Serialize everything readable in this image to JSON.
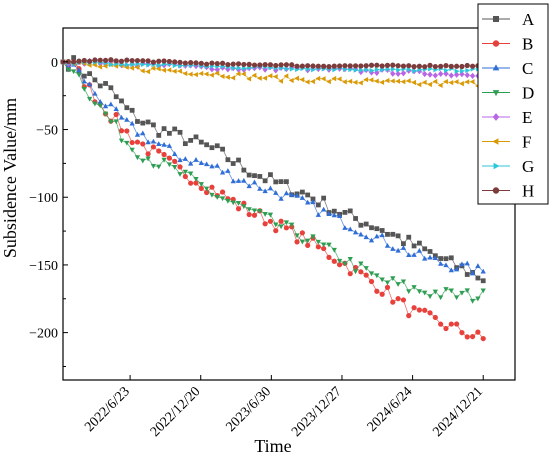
{
  "chart_data": {
    "type": "line",
    "xlabel": "Time",
    "ylabel": "Subsidence Value/mm",
    "ylim": [
      -235,
      25
    ],
    "x_tick_labels": [
      "2022/6/23",
      "2022/12/20",
      "2023/6/30",
      "2023/12/27",
      "2024/6/24",
      "2024/12/21"
    ],
    "x_tick_positions": [
      1,
      2,
      3,
      4,
      5,
      6
    ],
    "x_range": [
      0.05,
      6.45
    ],
    "y_ticks": [
      0,
      -50,
      -100,
      -150,
      -200
    ],
    "y_tick_labels": [
      "0",
      "−50",
      "−100",
      "−150",
      "−200"
    ],
    "x_start": 0.05,
    "x_end": 6.0,
    "point_count": 80,
    "legend_position": "top-right",
    "grid": false,
    "series": [
      {
        "name": "A",
        "color": "#555555",
        "marker": "square",
        "anchors": [
          [
            0.05,
            0
          ],
          [
            0.2,
            -1
          ],
          [
            0.45,
            -12
          ],
          [
            0.7,
            -20
          ],
          [
            1.0,
            -38
          ],
          [
            1.3,
            -48
          ],
          [
            1.7,
            -55
          ],
          [
            2.2,
            -65
          ],
          [
            2.6,
            -78
          ],
          [
            3.0,
            -88
          ],
          [
            3.5,
            -98
          ],
          [
            4.0,
            -112
          ],
          [
            4.5,
            -122
          ],
          [
            5.0,
            -135
          ],
          [
            5.5,
            -148
          ],
          [
            6.0,
            -160
          ]
        ],
        "noise": 5
      },
      {
        "name": "B",
        "color": "#e8413c",
        "marker": "circle",
        "anchors": [
          [
            0.05,
            0
          ],
          [
            0.2,
            -3
          ],
          [
            0.45,
            -22
          ],
          [
            0.7,
            -38
          ],
          [
            1.0,
            -55
          ],
          [
            1.3,
            -66
          ],
          [
            1.7,
            -80
          ],
          [
            2.2,
            -95
          ],
          [
            2.6,
            -108
          ],
          [
            3.0,
            -118
          ],
          [
            3.5,
            -132
          ],
          [
            4.0,
            -148
          ],
          [
            4.5,
            -165
          ],
          [
            5.0,
            -185
          ],
          [
            5.5,
            -195
          ],
          [
            6.0,
            -205
          ]
        ],
        "noise": 5
      },
      {
        "name": "C",
        "color": "#2f6ed6",
        "marker": "triangle-up",
        "anchors": [
          [
            0.05,
            0
          ],
          [
            0.2,
            -3
          ],
          [
            0.45,
            -20
          ],
          [
            0.7,
            -34
          ],
          [
            1.0,
            -48
          ],
          [
            1.3,
            -58
          ],
          [
            1.7,
            -70
          ],
          [
            2.2,
            -78
          ],
          [
            2.6,
            -88
          ],
          [
            3.0,
            -95
          ],
          [
            3.5,
            -105
          ],
          [
            4.0,
            -118
          ],
          [
            4.5,
            -130
          ],
          [
            5.0,
            -142
          ],
          [
            5.5,
            -150
          ],
          [
            6.0,
            -155
          ]
        ],
        "noise": 4
      },
      {
        "name": "D",
        "color": "#2e9e52",
        "marker": "triangle-down",
        "anchors": [
          [
            0.05,
            0
          ],
          [
            0.2,
            -4
          ],
          [
            0.45,
            -25
          ],
          [
            0.7,
            -42
          ],
          [
            1.0,
            -62
          ],
          [
            1.3,
            -72
          ],
          [
            1.7,
            -82
          ],
          [
            2.2,
            -98
          ],
          [
            2.6,
            -108
          ],
          [
            3.0,
            -118
          ],
          [
            3.5,
            -130
          ],
          [
            4.0,
            -145
          ],
          [
            4.5,
            -160
          ],
          [
            5.0,
            -168
          ],
          [
            5.5,
            -172
          ],
          [
            6.0,
            -173
          ]
        ],
        "noise": 5
      },
      {
        "name": "E",
        "color": "#b866e6",
        "marker": "diamond",
        "anchors": [
          [
            0.05,
            0
          ],
          [
            0.5,
            0
          ],
          [
            1.0,
            -2
          ],
          [
            1.5,
            -2
          ],
          [
            2.0,
            -4
          ],
          [
            2.5,
            -5
          ],
          [
            3.0,
            -5
          ],
          [
            3.5,
            -5
          ],
          [
            4.0,
            -6
          ],
          [
            4.5,
            -7
          ],
          [
            5.0,
            -8
          ],
          [
            5.5,
            -9
          ],
          [
            6.0,
            -9
          ]
        ],
        "noise": 1.5
      },
      {
        "name": "F",
        "color": "#d99a06",
        "marker": "triangle-left",
        "anchors": [
          [
            0.05,
            0
          ],
          [
            0.5,
            -3
          ],
          [
            1.0,
            -5
          ],
          [
            1.5,
            -6
          ],
          [
            2.0,
            -8
          ],
          [
            2.5,
            -10
          ],
          [
            3.0,
            -12
          ],
          [
            3.5,
            -13
          ],
          [
            4.0,
            -14
          ],
          [
            4.5,
            -15
          ],
          [
            5.0,
            -16
          ],
          [
            5.5,
            -16
          ],
          [
            6.0,
            -16
          ]
        ],
        "noise": 2
      },
      {
        "name": "G",
        "color": "#2cc7d9",
        "marker": "triangle-right",
        "anchors": [
          [
            0.05,
            0
          ],
          [
            0.5,
            -1
          ],
          [
            1.0,
            -2
          ],
          [
            1.5,
            -2
          ],
          [
            2.0,
            -3
          ],
          [
            2.5,
            -4
          ],
          [
            3.0,
            -4
          ],
          [
            3.5,
            -5
          ],
          [
            4.0,
            -5
          ],
          [
            4.5,
            -6
          ],
          [
            5.0,
            -6
          ],
          [
            5.5,
            -6
          ],
          [
            6.0,
            -6
          ]
        ],
        "noise": 1
      },
      {
        "name": "H",
        "color": "#7d3c3c",
        "marker": "circle",
        "anchors": [
          [
            0.05,
            0
          ],
          [
            0.5,
            1
          ],
          [
            1.0,
            1
          ],
          [
            1.5,
            0
          ],
          [
            2.0,
            -1
          ],
          [
            2.5,
            -2
          ],
          [
            3.0,
            -2
          ],
          [
            3.5,
            -3
          ],
          [
            4.0,
            -3
          ],
          [
            4.5,
            -3
          ],
          [
            5.0,
            -3
          ],
          [
            5.5,
            -3
          ],
          [
            6.0,
            -3
          ]
        ],
        "noise": 0.6
      }
    ]
  }
}
